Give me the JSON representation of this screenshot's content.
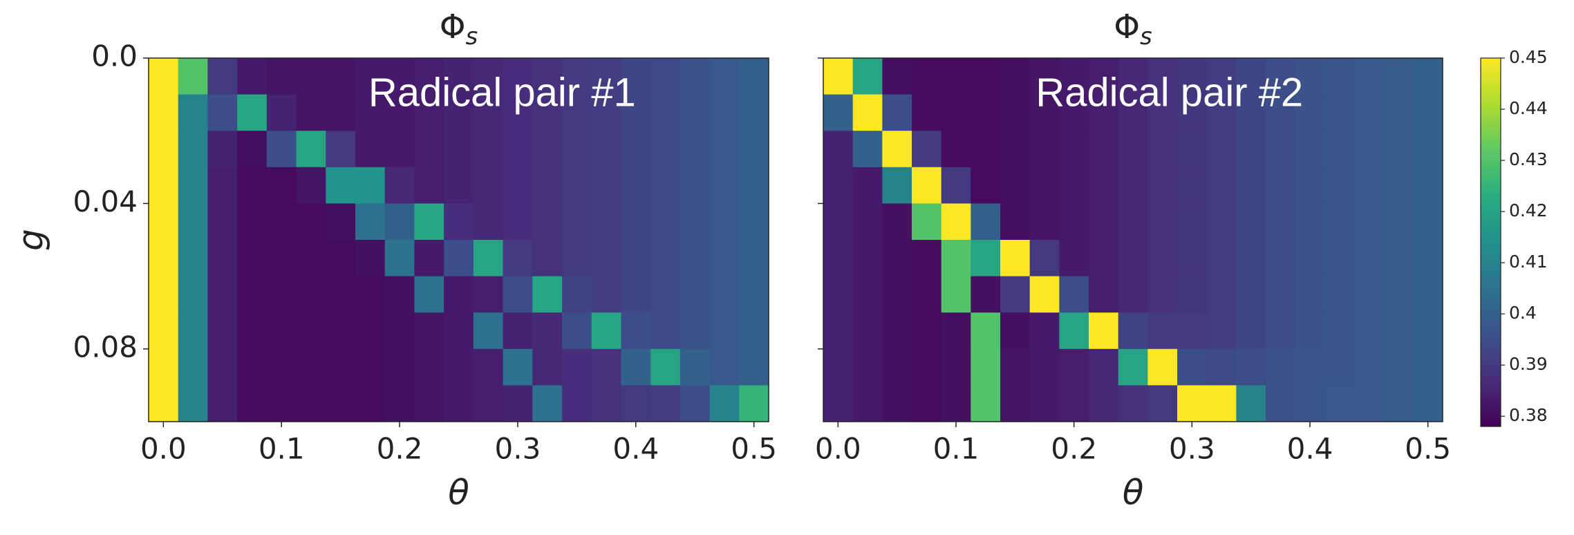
{
  "chart_data": [
    {
      "type": "heatmap",
      "title": "Φ",
      "title_subscript": "s",
      "annotation": "Radical pair #1",
      "xlabel": "θ",
      "ylabel": "g",
      "colormap": "viridis",
      "clim": [
        0.378,
        0.45
      ],
      "xlim": [
        -0.0125,
        0.5125
      ],
      "ylim": [
        0.1,
        0
      ],
      "xticks": [
        {
          "value": 0,
          "label": "0.0"
        },
        0.1,
        0.2,
        0.3,
        0.4,
        0.5
      ],
      "yticks": [
        {
          "value": 0,
          "label": "0.0"
        },
        0.04,
        0.08
      ],
      "ytick_labels": true,
      "x": [
        0,
        0.025,
        0.05,
        0.075,
        0.1,
        0.125,
        0.15,
        0.175,
        0.2,
        0.225,
        0.25,
        0.275,
        0.3,
        0.325,
        0.35,
        0.375,
        0.4,
        0.425,
        0.45,
        0.475,
        0.5
      ],
      "y": [
        0.005,
        0.015,
        0.025,
        0.035,
        0.045,
        0.055,
        0.065,
        0.075,
        0.085,
        0.095
      ],
      "z": [
        [
          0.45,
          0.43,
          0.39,
          0.383,
          0.382,
          0.382,
          0.382,
          0.383,
          0.383,
          0.384,
          0.385,
          0.386,
          0.387,
          0.388,
          0.39,
          0.391,
          0.393,
          0.394,
          0.396,
          0.398,
          0.4
        ],
        [
          0.45,
          0.41,
          0.395,
          0.42,
          0.385,
          0.382,
          0.382,
          0.383,
          0.383,
          0.384,
          0.385,
          0.386,
          0.387,
          0.388,
          0.39,
          0.391,
          0.393,
          0.394,
          0.396,
          0.398,
          0.4
        ],
        [
          0.45,
          0.41,
          0.385,
          0.381,
          0.395,
          0.42,
          0.39,
          0.383,
          0.383,
          0.384,
          0.385,
          0.386,
          0.387,
          0.388,
          0.39,
          0.391,
          0.393,
          0.394,
          0.396,
          0.398,
          0.4
        ],
        [
          0.45,
          0.41,
          0.384,
          0.38,
          0.38,
          0.382,
          0.415,
          0.415,
          0.386,
          0.384,
          0.385,
          0.386,
          0.387,
          0.388,
          0.39,
          0.391,
          0.393,
          0.394,
          0.396,
          0.398,
          0.4
        ],
        [
          0.45,
          0.41,
          0.384,
          0.38,
          0.38,
          0.38,
          0.381,
          0.405,
          0.4,
          0.42,
          0.387,
          0.386,
          0.387,
          0.388,
          0.39,
          0.391,
          0.393,
          0.394,
          0.396,
          0.398,
          0.4
        ],
        [
          0.45,
          0.41,
          0.384,
          0.38,
          0.38,
          0.38,
          0.38,
          0.381,
          0.405,
          0.383,
          0.395,
          0.42,
          0.39,
          0.388,
          0.39,
          0.391,
          0.393,
          0.394,
          0.396,
          0.398,
          0.4
        ],
        [
          0.45,
          0.41,
          0.384,
          0.38,
          0.38,
          0.38,
          0.38,
          0.38,
          0.381,
          0.405,
          0.383,
          0.384,
          0.395,
          0.42,
          0.392,
          0.391,
          0.393,
          0.394,
          0.396,
          0.398,
          0.4
        ],
        [
          0.45,
          0.41,
          0.384,
          0.38,
          0.38,
          0.38,
          0.38,
          0.38,
          0.381,
          0.382,
          0.383,
          0.405,
          0.385,
          0.386,
          0.395,
          0.42,
          0.395,
          0.394,
          0.396,
          0.398,
          0.4
        ],
        [
          0.45,
          0.41,
          0.384,
          0.38,
          0.38,
          0.38,
          0.38,
          0.38,
          0.381,
          0.382,
          0.383,
          0.384,
          0.405,
          0.386,
          0.387,
          0.388,
          0.4,
          0.42,
          0.4,
          0.398,
          0.4
        ],
        [
          0.45,
          0.41,
          0.384,
          0.38,
          0.38,
          0.38,
          0.38,
          0.38,
          0.381,
          0.382,
          0.383,
          0.384,
          0.385,
          0.405,
          0.387,
          0.388,
          0.39,
          0.391,
          0.395,
          0.41,
          0.425
        ]
      ]
    },
    {
      "type": "heatmap",
      "title": "Φ",
      "title_subscript": "s",
      "annotation": "Radical pair #2",
      "xlabel": "θ",
      "colormap": "viridis",
      "clim": [
        0.378,
        0.45
      ],
      "xlim": [
        -0.0125,
        0.5125
      ],
      "ylim": [
        0.1,
        0
      ],
      "xticks": [
        {
          "value": 0,
          "label": "0.0"
        },
        0.1,
        0.2,
        0.3,
        0.4,
        0.5
      ],
      "yticks": [
        0,
        0.04,
        0.08
      ],
      "ytick_labels": false,
      "x": [
        0,
        0.025,
        0.05,
        0.075,
        0.1,
        0.125,
        0.15,
        0.175,
        0.2,
        0.225,
        0.25,
        0.275,
        0.3,
        0.325,
        0.35,
        0.375,
        0.4,
        0.425,
        0.45,
        0.475,
        0.5
      ],
      "y": [
        0.005,
        0.015,
        0.025,
        0.035,
        0.045,
        0.055,
        0.065,
        0.075,
        0.085,
        0.095
      ],
      "z": [
        [
          0.45,
          0.42,
          0.381,
          0.38,
          0.38,
          0.38,
          0.381,
          0.382,
          0.383,
          0.384,
          0.386,
          0.388,
          0.389,
          0.391,
          0.393,
          0.395,
          0.396,
          0.397,
          0.398,
          0.399,
          0.4
        ],
        [
          0.4,
          0.45,
          0.395,
          0.38,
          0.38,
          0.38,
          0.381,
          0.382,
          0.383,
          0.384,
          0.386,
          0.388,
          0.389,
          0.391,
          0.393,
          0.395,
          0.396,
          0.397,
          0.398,
          0.399,
          0.4
        ],
        [
          0.385,
          0.4,
          0.45,
          0.39,
          0.38,
          0.38,
          0.381,
          0.382,
          0.383,
          0.384,
          0.386,
          0.388,
          0.389,
          0.391,
          0.393,
          0.395,
          0.396,
          0.397,
          0.398,
          0.399,
          0.4
        ],
        [
          0.385,
          0.383,
          0.41,
          0.45,
          0.39,
          0.38,
          0.381,
          0.382,
          0.383,
          0.384,
          0.386,
          0.388,
          0.389,
          0.391,
          0.393,
          0.395,
          0.396,
          0.397,
          0.398,
          0.399,
          0.4
        ],
        [
          0.385,
          0.383,
          0.381,
          0.43,
          0.45,
          0.4,
          0.381,
          0.382,
          0.383,
          0.384,
          0.386,
          0.388,
          0.389,
          0.391,
          0.393,
          0.395,
          0.396,
          0.397,
          0.398,
          0.399,
          0.4
        ],
        [
          0.385,
          0.383,
          0.381,
          0.38,
          0.43,
          0.42,
          0.45,
          0.39,
          0.383,
          0.384,
          0.386,
          0.388,
          0.389,
          0.391,
          0.393,
          0.395,
          0.396,
          0.397,
          0.398,
          0.399,
          0.4
        ],
        [
          0.385,
          0.383,
          0.381,
          0.38,
          0.43,
          0.381,
          0.39,
          0.45,
          0.395,
          0.384,
          0.386,
          0.388,
          0.389,
          0.391,
          0.393,
          0.395,
          0.396,
          0.397,
          0.398,
          0.399,
          0.4
        ],
        [
          0.385,
          0.383,
          0.381,
          0.38,
          0.381,
          0.43,
          0.381,
          0.383,
          0.42,
          0.45,
          0.392,
          0.39,
          0.39,
          0.391,
          0.393,
          0.395,
          0.396,
          0.397,
          0.398,
          0.399,
          0.4
        ],
        [
          0.385,
          0.383,
          0.381,
          0.38,
          0.381,
          0.43,
          0.382,
          0.383,
          0.384,
          0.386,
          0.42,
          0.45,
          0.395,
          0.394,
          0.395,
          0.396,
          0.397,
          0.397,
          0.398,
          0.399,
          0.4
        ],
        [
          0.385,
          0.383,
          0.381,
          0.38,
          0.381,
          0.43,
          0.382,
          0.383,
          0.384,
          0.386,
          0.388,
          0.39,
          0.45,
          0.45,
          0.41,
          0.396,
          0.397,
          0.398,
          0.398,
          0.399,
          0.4
        ]
      ],
      "colorbar": {
        "clim": [
          0.378,
          0.45
        ],
        "ticks": [
          0.38,
          0.39,
          0.4,
          0.41,
          0.42,
          0.43,
          0.44,
          0.45
        ]
      }
    }
  ]
}
